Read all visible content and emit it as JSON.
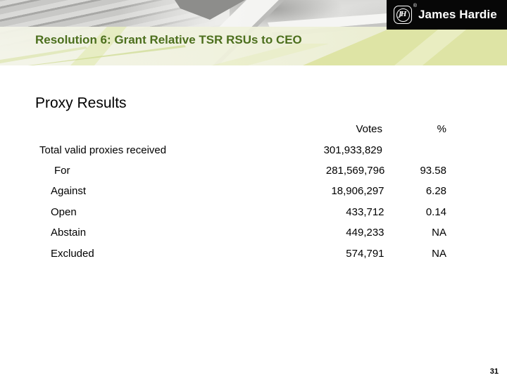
{
  "slide": {
    "title": "Resolution 6: Grant Relative TSR RSUs to CEO",
    "heading": "Proxy Results",
    "page_number": "31"
  },
  "logo": {
    "brand": "James Hardie",
    "monogram": "JH",
    "registered_mark": "®"
  },
  "table": {
    "columns": {
      "votes": "Votes",
      "pct": "%"
    },
    "rows": [
      {
        "label": "Total valid proxies received",
        "votes": "301,933,829",
        "pct": ""
      },
      {
        "label": "For",
        "votes": "281,569,796",
        "pct": "93.58"
      },
      {
        "label": "Against",
        "votes": "18,906,297",
        "pct": "6.28"
      },
      {
        "label": "Open",
        "votes": "433,712",
        "pct": "0.14"
      },
      {
        "label": "Abstain",
        "votes": "449,233",
        "pct": "NA"
      },
      {
        "label": "Excluded",
        "votes": "574,791",
        "pct": "NA"
      }
    ]
  },
  "colors": {
    "title_green": "#4c6f1d",
    "band_green": "#dde3a2",
    "logo_background": "#070707"
  }
}
